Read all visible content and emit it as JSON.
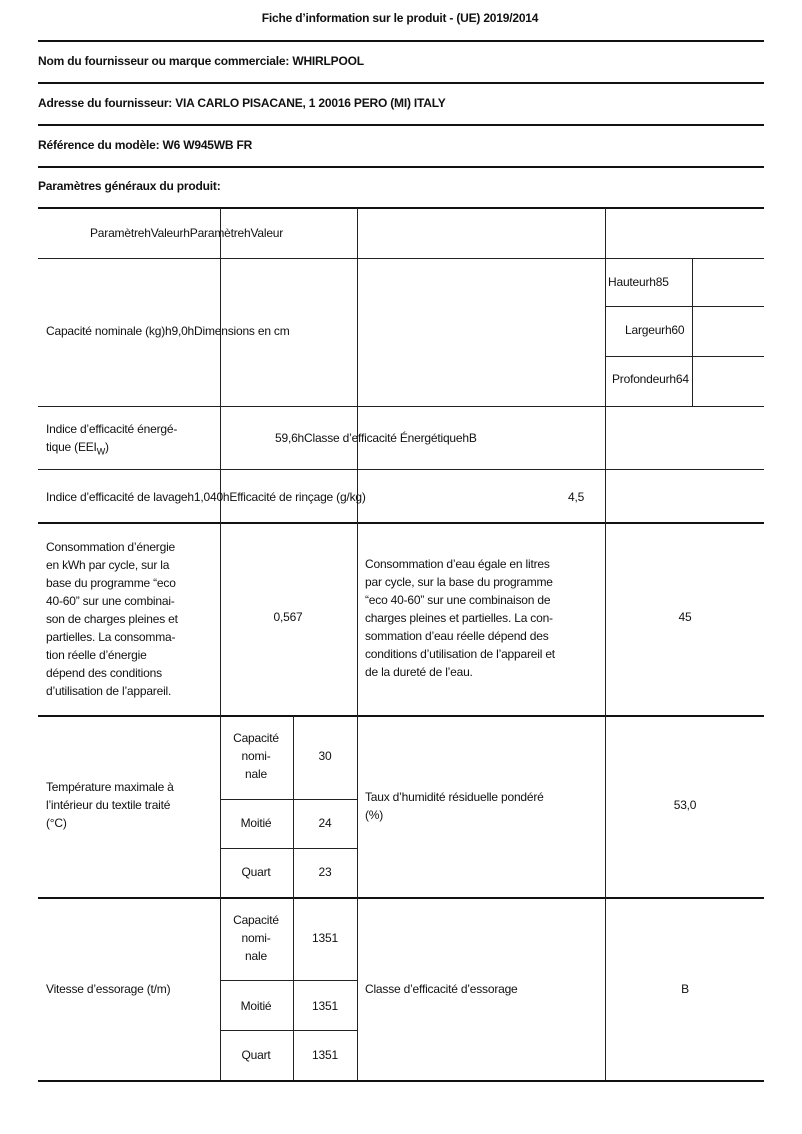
{
  "header": {
    "title": "Fiche d’information sur le produit - (UE) 2019/2014",
    "supplier": "Nom du fournisseur ou marque commerciale: WHIRLPOOL",
    "address": "Adresse du fournisseur: VIA CARLO PISACANE, 1 20016 PERO (MI) ITALY",
    "model": "Référence du modèle: W6 W945WB FR",
    "general": "Paramètres généraux du produit:"
  },
  "table": {
    "head": "ParamètrehValeurhParamètrehValeur",
    "capacity": "Capacité nominale (kg)h9,0hDimensions en cm",
    "height": "Hauteurh85",
    "width": "Largeurh60",
    "depth": "Profondeurh64",
    "eei_label_1": "Indice d’efficacité énergé-",
    "eei_label_2": "tique (EEI",
    "eei_sub": "W",
    "eei_label_3": ")",
    "eei_value": "59,6hClasse d’efficacité ÉnergétiquehB",
    "wash_index": "Indice d’efficacité de lavageh1,040hEfficacité de rinçage (g/kg)",
    "rinse_value": "4,5",
    "energy_label": [
      "Consommation d’énergie",
      "en kWh par cycle, sur la",
      "base du programme “eco",
      "40-60” sur une combinai-",
      "son de charges pleines et",
      "partielles. La consomma-",
      "tion réelle d’énergie",
      "dépend des conditions",
      "d’utilisation de l’appareil."
    ],
    "energy_value": "0,567",
    "water_label": [
      "Consommation d’eau égale en litres",
      "par cycle, sur la base du programme",
      "“eco 40-60” sur une combinaison de",
      "charges pleines et partielles. La con-",
      "sommation d’eau réelle dépend des",
      "conditions d’utilisation de l’appareil et",
      "de la dureté de l’eau."
    ],
    "water_value": "45",
    "temp_label": [
      "Température maximale à",
      "l’intérieur du textile traité",
      "(°C)"
    ],
    "temp_rows": [
      {
        "label": [
          "Capacité",
          "nomi-",
          "nale"
        ],
        "value": "30"
      },
      {
        "label": [
          "Moitié"
        ],
        "value": "24"
      },
      {
        "label": [
          "Quart"
        ],
        "value": "23"
      }
    ],
    "humidity_label": [
      "Taux d’humidité résiduelle pondéré",
      "(%)"
    ],
    "humidity_value": "53,0",
    "spin_label": "Vitesse d’essorage (t/m)",
    "spin_rows": [
      {
        "label": [
          "Capacité",
          "nomi-",
          "nale"
        ],
        "value": "1351"
      },
      {
        "label": [
          "Moitié"
        ],
        "value": "1351"
      },
      {
        "label": [
          "Quart"
        ],
        "value": "1351"
      }
    ],
    "spin_class_label": "Classe d’efficacité d’essorage",
    "spin_class_value": "B"
  }
}
